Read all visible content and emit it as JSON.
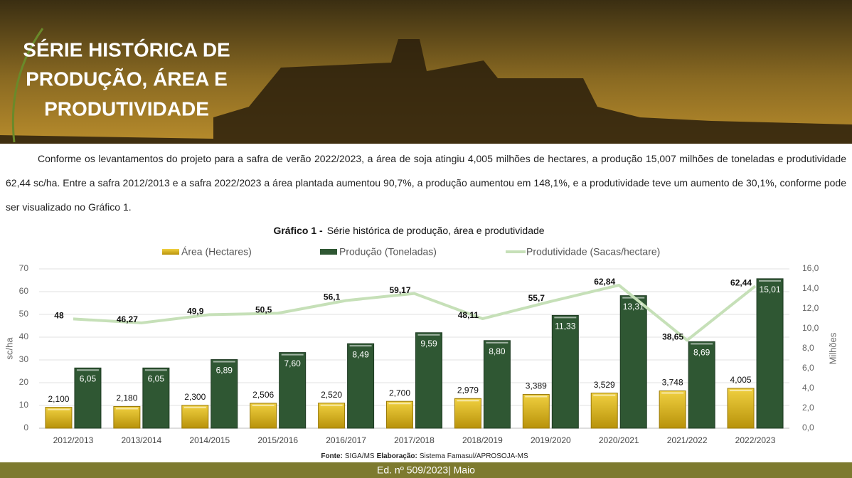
{
  "header": {
    "title": [
      "SÉRIE HISTÓRICA DE",
      "PRODUÇÃO, ÁREA E",
      "PRODUTIVIDADE"
    ]
  },
  "body": {
    "paragraph": "Conforme os levantamentos do projeto para a safra de verão 2022/2023, a área de soja atingiu 4,005 milhões de hectares, a produção 15,007 milhões de toneladas e produtividade 62,44 sc/ha. Entre a safra 2012/2013 e a safra 2022/2023 a área plantada aumentou 90,7%, a produção aumentou em 148,1%, e a produtividade teve um aumento de 30,1%, conforme pode ser visualizado no Gráfico 1."
  },
  "chart_data": {
    "type": "bar",
    "label": "Gráfico 1 -",
    "title": "Série histórica de produção, área e produtividade",
    "ylabel": "sc/ha",
    "y2label": "Milhões",
    "categories": [
      "2012/2013",
      "2013/2014",
      "2014/2015",
      "2015/2016",
      "2016/2017",
      "2017/2018",
      "2018/2019",
      "2019/2020",
      "2020/2021",
      "2021/2022",
      "2022/2023"
    ],
    "series": [
      {
        "name": "Área (Hectares)",
        "type": "bar",
        "axis": "y2",
        "color": "#d4ac0d",
        "values": [
          2.1,
          2.18,
          2.3,
          2.506,
          2.52,
          2.7,
          2.979,
          3.389,
          3.529,
          3.748,
          4.005
        ],
        "value_labels": [
          "2,100",
          "2,180",
          "2,300",
          "2,506",
          "2,520",
          "2,700",
          "2,979",
          "3,389",
          "3,529",
          "3,748",
          "4,005"
        ]
      },
      {
        "name": "Produção (Toneladas)",
        "type": "bar",
        "axis": "y2",
        "color": "#2f5733",
        "values": [
          6.05,
          6.05,
          6.89,
          7.6,
          8.49,
          9.59,
          8.8,
          11.33,
          13.31,
          8.69,
          15.01
        ],
        "value_labels": [
          "6,05",
          "6,05",
          "6,89",
          "7,60",
          "8,49",
          "9,59",
          "8,80",
          "11,33",
          "13,31",
          "8,69",
          "15,01"
        ]
      },
      {
        "name": "Produtividade (Sacas/hectare)",
        "type": "line",
        "color": "#c6e0b8",
        "values": [
          48,
          46.27,
          49.9,
          50.5,
          56.1,
          59.17,
          48.11,
          55.7,
          62.84,
          38.65,
          62.44
        ],
        "value_labels": [
          "48",
          "46,27",
          "49,9",
          "50,5",
          "56,1",
          "59,17",
          "48,11",
          "55,7",
          "62,84",
          "38,65",
          "62,44"
        ]
      }
    ],
    "ylim": [
      0,
      70
    ],
    "yticks": [
      0,
      10,
      20,
      30,
      40,
      50,
      60,
      70
    ],
    "y2lim": [
      0,
      16
    ],
    "y2ticks": [
      {
        "value": 0,
        "label": "0,0"
      },
      {
        "value": 2,
        "label": "2,0"
      },
      {
        "value": 4,
        "label": "4,0"
      },
      {
        "value": 6,
        "label": "6,0"
      },
      {
        "value": 8,
        "label": "8,0"
      },
      {
        "value": 10,
        "label": "10,0"
      },
      {
        "value": 12,
        "label": "12,0"
      },
      {
        "value": 14,
        "label": "14,0"
      },
      {
        "value": 16,
        "label": "16,0"
      }
    ],
    "grid": true,
    "legend": "top",
    "source": {
      "fonte_label": "Fonte:",
      "fonte": "SIGA/MS",
      "elab_label": "Elaboração:",
      "elab": "Sistema Famasul/APROSOJA-MS"
    }
  },
  "footer": {
    "edition": "Ed. nº 509/2023| Maio"
  }
}
